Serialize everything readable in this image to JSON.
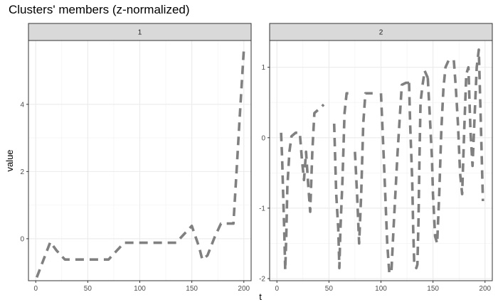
{
  "chart_data": {
    "type": "line",
    "title": "Clusters' members (z-normalized)",
    "xlabel": "t",
    "ylabel": "value",
    "line_color": "#808080",
    "line_style": "dashed",
    "panels": [
      {
        "label": "1",
        "xlim": [
          -7,
          207
        ],
        "ylim": [
          -1.25,
          5.9
        ],
        "x_ticks": [
          0,
          50,
          100,
          150,
          200
        ],
        "y_ticks": [
          0,
          2,
          4
        ],
        "series": [
          {
            "x": [
              1,
              14,
              20,
              28,
              35,
              45,
              60,
              70,
              75,
              85,
              100,
              115,
              130,
              135,
              140,
              150,
              157,
              160,
              165,
              172,
              178,
              185,
              190,
              193,
              196,
              200
            ],
            "y": [
              -1.15,
              -0.1,
              -0.35,
              -0.62,
              -0.62,
              -0.62,
              -0.62,
              -0.62,
              -0.45,
              -0.12,
              -0.12,
              -0.12,
              -0.12,
              -0.12,
              0.05,
              0.38,
              -0.25,
              -0.62,
              -0.5,
              0.05,
              0.45,
              0.45,
              0.45,
              2.0,
              3.6,
              5.65
            ]
          }
        ]
      },
      {
        "label": "2",
        "xlim": [
          -7,
          207
        ],
        "ylim": [
          -2.03,
          1.38
        ],
        "x_ticks": [
          0,
          50,
          100,
          150,
          200
        ],
        "y_ticks": [
          -2,
          -1,
          0,
          1
        ],
        "series": [
          {
            "x": [
              4,
              5,
              6,
              7,
              8,
              9,
              10,
              12,
              14,
              18,
              22,
              24,
              26,
              28,
              30,
              32,
              34,
              36,
              40,
              45
            ],
            "y": [
              0.07,
              -0.3,
              -0.8,
              -1.3,
              -1.88,
              -1.4,
              -0.7,
              -0.2,
              0.02,
              0.07,
              0.07,
              -0.3,
              -0.6,
              -0.2,
              -0.65,
              -1.05,
              -0.2,
              0.35,
              0.4,
              0.47
            ]
          },
          {
            "x": [
              55,
              57,
              59,
              60,
              61,
              63,
              65,
              67,
              70
            ],
            "y": [
              0.2,
              -0.8,
              -1.3,
              -1.85,
              -1.3,
              -0.6,
              0.35,
              0.63,
              0.63
            ]
          },
          {
            "x": [
              75,
              77,
              79,
              81,
              83,
              85,
              88,
              92
            ],
            "y": [
              -0.2,
              -0.8,
              -1.5,
              -0.8,
              0.2,
              0.63,
              0.63,
              0.63
            ]
          },
          {
            "x": [
              100,
              103,
              106,
              108,
              110,
              112,
              116,
              120,
              124,
              127
            ],
            "y": [
              0.63,
              -0.4,
              -1.5,
              -1.92,
              -1.92,
              -1.3,
              -0.2,
              0.75,
              0.78,
              0.78
            ]
          },
          {
            "x": [
              127,
              128,
              130,
              131,
              132,
              134,
              135,
              136,
              137,
              138,
              140,
              142,
              145
            ],
            "y": [
              0.78,
              0.2,
              -0.6,
              -1.3,
              -1.8,
              -1.85,
              -1.8,
              -1.2,
              -0.3,
              0.5,
              0.75,
              0.95,
              0.85
            ]
          },
          {
            "x": [
              145,
              147,
              149,
              150,
              152,
              154,
              156,
              158,
              160,
              162,
              165,
              170
            ],
            "y": [
              0.85,
              0.3,
              -0.3,
              -0.8,
              -1.4,
              -1.5,
              -0.8,
              0.1,
              0.7,
              1.0,
              1.1,
              1.1
            ]
          },
          {
            "x": [
              170,
              172,
              174,
              176,
              178,
              180,
              182,
              184,
              186,
              188,
              190,
              192,
              194,
              196,
              198
            ],
            "y": [
              1.1,
              0.7,
              0.2,
              -0.5,
              -0.8,
              0.1,
              0.9,
              1.0,
              0.1,
              -0.4,
              0.3,
              1.0,
              1.25,
              0.2,
              -0.9
            ]
          }
        ]
      }
    ]
  }
}
